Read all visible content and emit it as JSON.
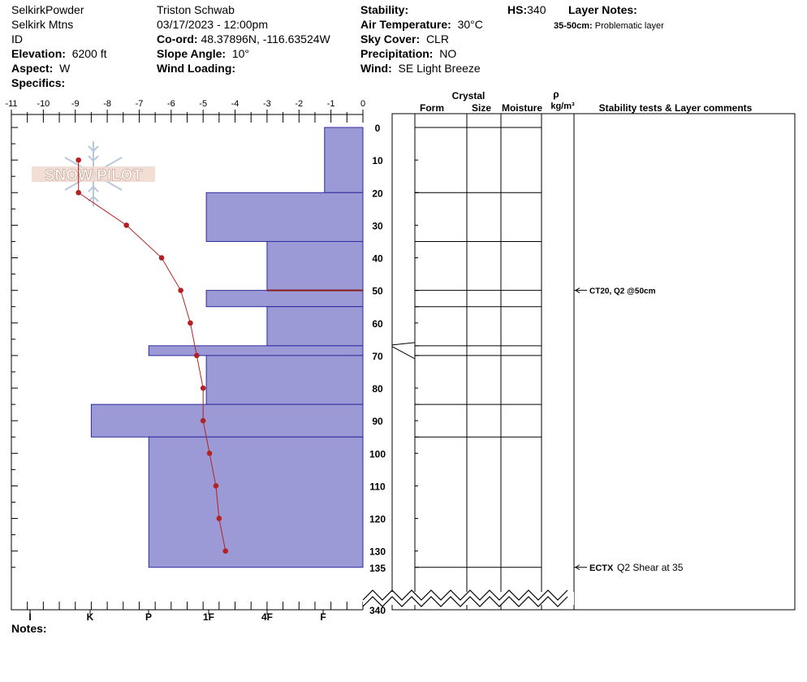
{
  "header": {
    "observer_group": "SelkirkPowder",
    "range": "Selkirk Mtns",
    "state": "ID",
    "elevation_label": "Elevation:",
    "elevation_value": "6200 ft",
    "aspect_label": "Aspect:",
    "aspect_value": "W",
    "specifics_label": "Specifics:",
    "observer": "Triston Schwab",
    "datetime": "03/17/2023 - 12:00pm",
    "coord_label": "Co-ord:",
    "coord_value": "48.37896N, -116.63524W",
    "slope_label": "Slope Angle:",
    "slope_value": "10°",
    "wind_loading_label": "Wind Loading:",
    "stability_label": "Stability:",
    "air_temp_label": "Air Temperature:",
    "air_temp_value": "30°C",
    "sky_label": "Sky Cover:",
    "sky_value": "CLR",
    "precip_label": "Precipitation:",
    "precip_value": "NO",
    "wind_label": "Wind:",
    "wind_value": "SE  Light Breeze",
    "hs_label": "HS:",
    "hs_value": "340",
    "layer_notes_label": "Layer Notes:",
    "layer_note_depth": "35-50cm:",
    "layer_note_text": "Problematic layer"
  },
  "notes_label": "Notes:",
  "logo_text": "SNOW PILOT",
  "columns": {
    "crystal": "Crystal",
    "form": "Form",
    "size": "Size",
    "moisture": "Moisture",
    "rho": "ρ",
    "density_unit": "kg/m³",
    "stability": "Stability tests & Layer comments"
  },
  "stability_tests": [
    {
      "depth": 50,
      "text": "CT20, Q2 @50cm",
      "bold": true
    },
    {
      "depth": 135,
      "code": "ECTX",
      "text": "Q2 Shear at 35"
    }
  ],
  "colors": {
    "hardness_fill": "#9b9ad6",
    "hardness_stroke": "#2b2b9b",
    "temperature": "#b22222",
    "weak_layer": "#8b1a1a"
  },
  "chart_data": {
    "type": "line",
    "temperature_axis": {
      "ticks": [
        -11,
        -10,
        -9,
        -8,
        -7,
        -6,
        -5,
        -4,
        -3,
        -2,
        -1,
        0
      ],
      "range": [
        -11,
        0
      ]
    },
    "depth_axis": {
      "ticks": [
        0,
        10,
        20,
        30,
        40,
        50,
        60,
        70,
        80,
        90,
        100,
        110,
        120,
        130,
        135,
        340
      ],
      "range": [
        0,
        340
      ]
    },
    "hardness_axis": {
      "labels": [
        "I",
        "K",
        "P",
        "1F",
        "4F",
        "F"
      ]
    },
    "temperature_profile": {
      "depth": [
        10,
        20,
        30,
        40,
        50,
        60,
        70,
        80,
        90,
        100,
        110,
        120,
        130
      ],
      "temp": [
        -8.9,
        -8.9,
        -7.4,
        -6.3,
        -5.7,
        -5.4,
        -5.2,
        -5.0,
        -5.0,
        -4.8,
        -4.6,
        -4.5,
        -4.3
      ]
    },
    "hardness_layers": [
      {
        "top": 0,
        "bottom": 20,
        "hardness": -1.2
      },
      {
        "top": 20,
        "bottom": 35,
        "hardness": -4.9
      },
      {
        "top": 35,
        "bottom": 50,
        "hardness": -3.0
      },
      {
        "top": 50,
        "bottom": 55,
        "hardness": -4.9
      },
      {
        "top": 55,
        "bottom": 67,
        "hardness": -3.0
      },
      {
        "top": 67,
        "bottom": 70,
        "hardness": -6.7
      },
      {
        "top": 70,
        "bottom": 85,
        "hardness": -4.9
      },
      {
        "top": 85,
        "bottom": 95,
        "hardness": -8.5
      },
      {
        "top": 95,
        "bottom": 135,
        "hardness": -6.7
      }
    ],
    "layer_boundaries": [
      0,
      20,
      35,
      50,
      55,
      67,
      70,
      85,
      95,
      135
    ],
    "weak_layer_depth": 50
  }
}
